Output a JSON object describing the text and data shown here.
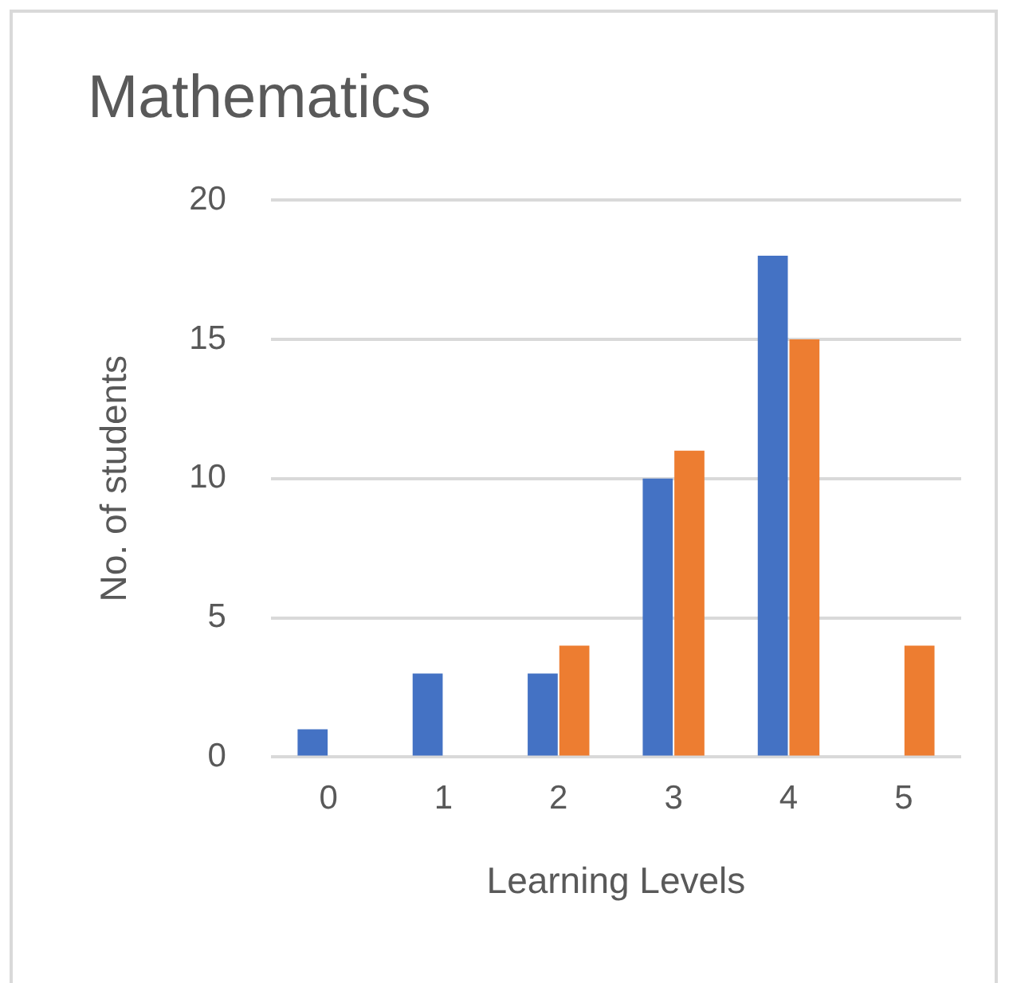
{
  "chart_data": {
    "type": "bar",
    "title": "Mathematics",
    "xlabel": "Learning Levels",
    "ylabel": "No. of students",
    "categories": [
      "0",
      "1",
      "2",
      "3",
      "4",
      "5"
    ],
    "series": [
      {
        "color": "#4472c4",
        "values": [
          1,
          3,
          3,
          10,
          18,
          0
        ]
      },
      {
        "color": "#ed7d31",
        "values": [
          0,
          0,
          4,
          11,
          15,
          4
        ]
      }
    ],
    "ylim": [
      0,
      20
    ],
    "yticks": [
      0,
      5,
      10,
      15,
      20
    ],
    "grid": "y",
    "legend": false
  }
}
